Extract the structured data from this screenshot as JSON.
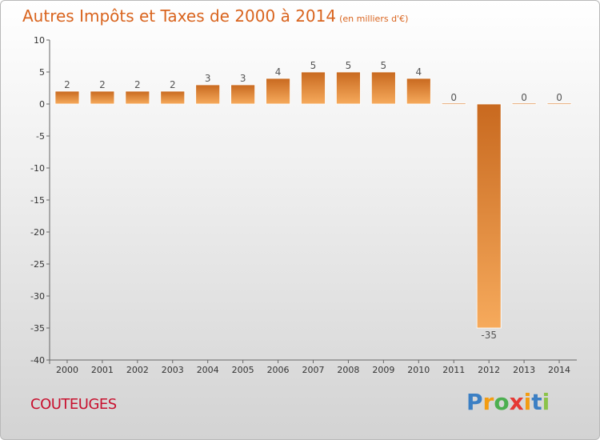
{
  "title": "Autres Impôts et Taxes de 2000 à 2014",
  "unit": "(en milliers d'€)",
  "commune": "COUTEUGES",
  "logo": {
    "letters": [
      "P",
      "r",
      "o",
      "x",
      "i",
      "t",
      "i"
    ],
    "colors": [
      "#3b7fc4",
      "#f39c12",
      "#4caf50",
      "#e53935",
      "#f39c12",
      "#3b7fc4",
      "#8bc34a"
    ]
  },
  "colors": {
    "title": "#d9641e",
    "commune": "#c8102e",
    "bar_top": "#c8691f",
    "bar_bottom": "#f6aa5c"
  },
  "chart_data": {
    "type": "bar",
    "title": "Autres Impôts et Taxes de 2000 à 2014",
    "xlabel": "",
    "ylabel": "",
    "categories": [
      "2000",
      "2001",
      "2002",
      "2003",
      "2004",
      "2005",
      "2006",
      "2007",
      "2008",
      "2009",
      "2010",
      "2011",
      "2012",
      "2013",
      "2014"
    ],
    "values": [
      2,
      2,
      2,
      2,
      3,
      3,
      4,
      5,
      5,
      5,
      4,
      0,
      -35,
      0,
      0
    ],
    "data_labels": [
      "2",
      "2",
      "2",
      "2",
      "3",
      "3",
      "4",
      "5",
      "5",
      "5",
      "4",
      "0",
      "-35",
      "0",
      "0"
    ],
    "ylim": [
      -40,
      10
    ],
    "yticks": [
      10,
      5,
      0,
      -5,
      -10,
      -15,
      -20,
      -25,
      -30,
      -35,
      -40
    ],
    "grid": false,
    "legend": "none"
  }
}
